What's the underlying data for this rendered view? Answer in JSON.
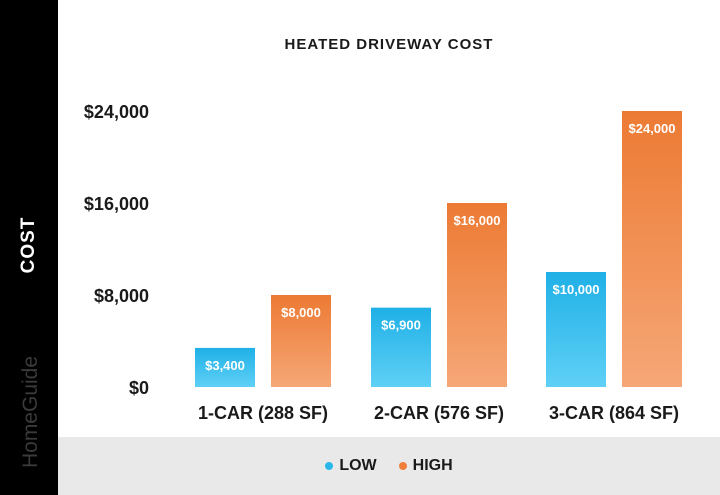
{
  "chart_data": {
    "type": "bar",
    "title": "HEATED DRIVEWAY COST",
    "ylabel": "COST",
    "xlabel": "",
    "categories": [
      "1-CAR (288 SF)",
      "2-CAR (576 SF)",
      "3-CAR (864 SF)"
    ],
    "series": [
      {
        "name": "LOW",
        "values": [
          3400,
          6900,
          10000
        ],
        "labels": [
          "$3,400",
          "$6,900",
          "$10,000"
        ],
        "color": "#29b6e8"
      },
      {
        "name": "HIGH",
        "values": [
          8000,
          16000,
          24000
        ],
        "labels": [
          "$8,000",
          "$16,000",
          "$24,000"
        ],
        "color": "#ef7f3a"
      }
    ],
    "ylim": [
      0,
      24000
    ],
    "yticks": [
      0,
      8000,
      16000,
      24000
    ],
    "ytick_labels": [
      "$0",
      "$8,000",
      "$16,000",
      "$24,000"
    ],
    "grid": false,
    "legend_position": "bottom"
  },
  "branding": {
    "watermark": "HomeGuide"
  }
}
